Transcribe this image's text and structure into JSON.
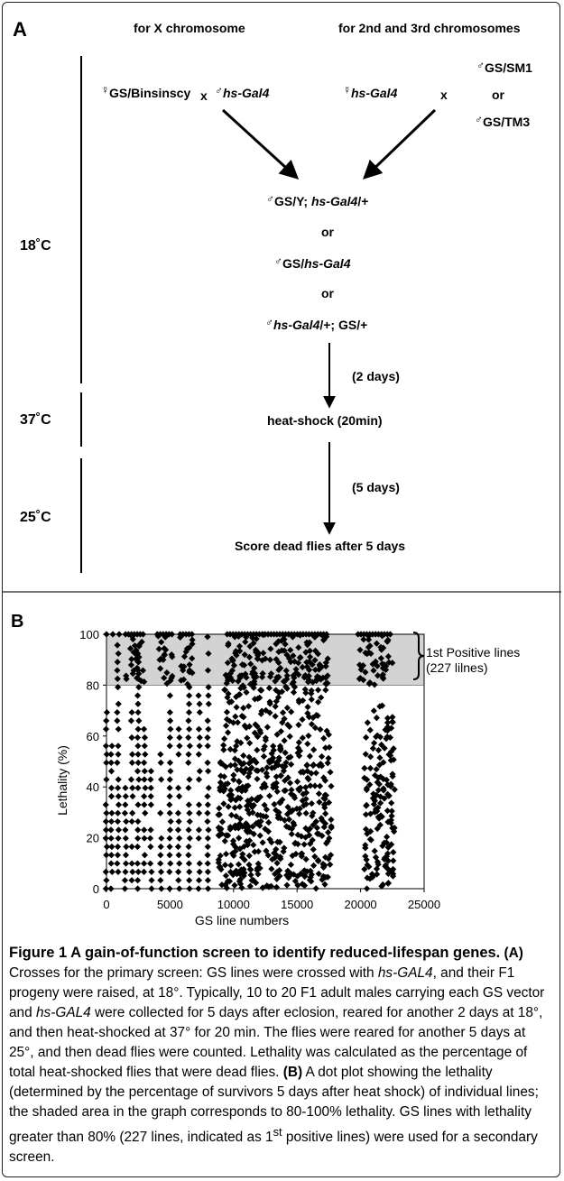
{
  "panel_a": {
    "label": "A",
    "col_x": "for X chromosome",
    "col_23": "for 2nd and 3rd chromosomes",
    "female_symbol": "☿",
    "male_symbol": "♂",
    "cross_left_female": "GS/Binsinscy",
    "cross_x": "x",
    "cross_left_male": "hs-Gal4",
    "cross_right_female": "hs-Gal4",
    "cross_right_male_1": "GS/SM1",
    "cross_or": "or",
    "cross_right_male_2": "GS/TM3",
    "progeny_1_a": "GS/Y; ",
    "progeny_1_b": "hs-Gal4",
    "progeny_1_c": "/+",
    "progeny_2_a": "GS/",
    "progeny_2_b": "hs-Gal4",
    "progeny_3_b": "hs-Gal4",
    "progeny_3_c": "/+; GS/+",
    "wait_1": "(2 days)",
    "heat_shock": "heat-shock (20min)",
    "wait_2": "(5 days)",
    "score": "Score dead flies after 5 days",
    "temps": [
      "18˚C",
      "37˚C",
      "25˚C"
    ]
  },
  "panel_b": {
    "label": "B",
    "bracket_line1": "1st Positive lines",
    "bracket_line2": "(227 lilnes)"
  },
  "chart_data": {
    "type": "scatter",
    "xlabel": "GS line numbers",
    "ylabel": "Lethality (%)",
    "xlim": [
      0,
      25000
    ],
    "ylim": [
      0,
      100
    ],
    "xticks": [
      0,
      5000,
      10000,
      15000,
      20000,
      25000
    ],
    "yticks": [
      0,
      20,
      40,
      60,
      80,
      100
    ],
    "shaded_band": [
      80,
      100
    ],
    "shaded_color": "#d3d3d3",
    "marker": "diamond",
    "marker_color": "#000000",
    "dense_ranges": [
      [
        8800,
        17800,
        50
      ],
      [
        20300,
        22700,
        47
      ]
    ],
    "sparse_columns": [
      0,
      400,
      900,
      1500,
      2000,
      2500,
      3000,
      3500,
      4300,
      5000,
      5700,
      6500,
      7300,
      8000
    ],
    "top_ranges": [
      [
        1500,
        3000
      ],
      [
        4000,
        5200
      ],
      [
        5800,
        6800
      ],
      [
        9500,
        17500
      ],
      [
        19800,
        22500
      ]
    ]
  },
  "caption": {
    "title": "Figure 1 A gain-of-function screen to identify reduced-lifespan genes.",
    "a_label": "(A)",
    "p1": " Crosses for the primary screen: GS lines were crossed with ",
    "i1": "hs-GAL4",
    "p2": ", and their F1 progeny were raised, at 18°. Typically, 10 to 20 F1 adult males carrying each GS vector and ",
    "i2": "hs-GAL4",
    "p3": " were collected for 5 days after eclosion, reared for another 2 days at 18°, and then heat-shocked at 37° for 20 min. The flies were reared for another 5 days at 25°, and then dead flies were counted. Lethality was calculated as the percentage of total heat-shocked flies that were dead flies. ",
    "b_label": "(B)",
    "p4": " A dot plot showing the lethality (determined by the percentage of survivors 5 days after heat shock) of individual lines; the shaded area in the graph corresponds to 80-100% lethality. GS lines with lethality greater than 80% (227 lines, indicated as 1",
    "sup": "st",
    "p5": " positive lines) were used for a secondary screen."
  }
}
